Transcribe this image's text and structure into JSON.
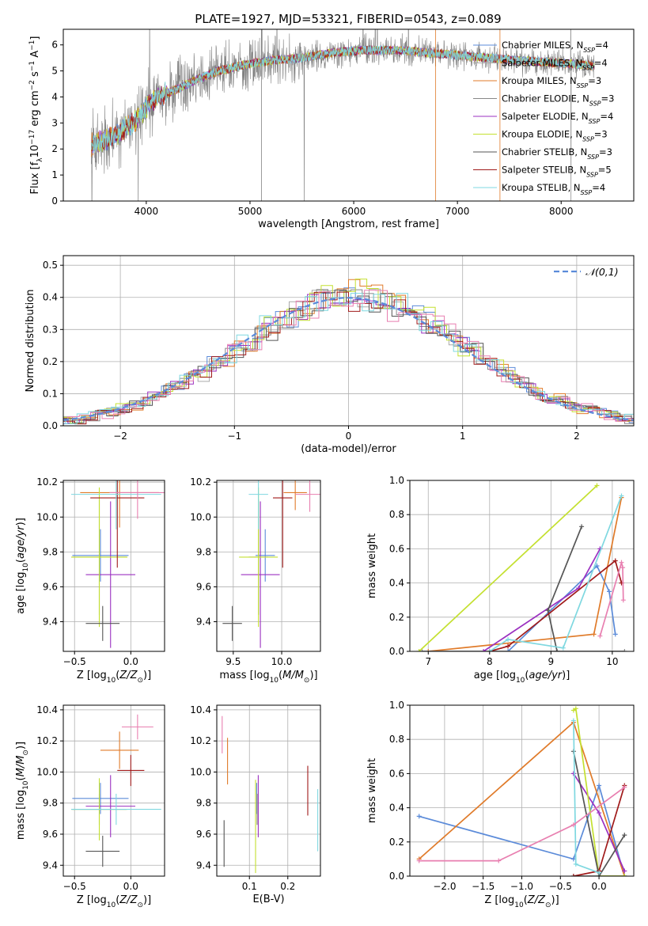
{
  "title": "PLATE=1927, MJD=53321, FIBERID=0543, z=0.089",
  "colors": {
    "Chabrier MILES": "#5b8bd9",
    "Salpeter MILES": "#aaaaaa",
    "Kroupa MILES": "#e07b2a",
    "Chabrier ELODIE": "#888888",
    "Salpeter ELODIE": "#9b30c0",
    "Kroupa ELODIE": "#c4e030",
    "Chabrier STELIB": "#555555",
    "Salpeter STELIB": "#a01a1a",
    "Kroupa STELIB": "#7fd8e0",
    "pink": "#e87fb0",
    "gaussian": "#5b8bd9"
  },
  "chart_data": [
    {
      "id": "spectrum",
      "type": "line",
      "xlabel": "wavelength [Angstrom, rest frame]",
      "ylabel": "Flux [fλ 10^-17 erg cm^-2 s^-1 A^-1]",
      "xlim": [
        3200,
        8700
      ],
      "ylim": [
        0,
        6.6
      ],
      "xticks": [
        4000,
        5000,
        6000,
        7000,
        8000
      ],
      "yticks": [
        0,
        1,
        2,
        3,
        4,
        5,
        6
      ],
      "grid": false,
      "legend": "upper right",
      "legend_entries": [
        {
          "label": "Chabrier MILES, N",
          "sub": "SSP",
          "suffix": "=4"
        },
        {
          "label": "Salpeter MILES, N",
          "sub": "SSP",
          "suffix": "=4"
        },
        {
          "label": "Kroupa MILES, N",
          "sub": "SSP",
          "suffix": "=3"
        },
        {
          "label": "Chabrier ELODIE, N",
          "sub": "SSP",
          "suffix": "=3"
        },
        {
          "label": "Salpeter ELODIE, N",
          "sub": "SSP",
          "suffix": "=4"
        },
        {
          "label": "Kroupa ELODIE, N",
          "sub": "SSP",
          "suffix": "=3"
        },
        {
          "label": "Chabrier STELIB, N",
          "sub": "SSP",
          "suffix": "=3"
        },
        {
          "label": "Salpeter STELIB, N",
          "sub": "SSP",
          "suffix": "=5"
        },
        {
          "label": "Kroupa STELIB, N",
          "sub": "SSP",
          "suffix": "=4"
        }
      ],
      "model_continuum": [
        [
          3500,
          2.2
        ],
        [
          3700,
          2.5
        ],
        [
          3900,
          3.1
        ],
        [
          4000,
          3.6
        ],
        [
          4100,
          4.0
        ],
        [
          4300,
          4.3
        ],
        [
          4500,
          4.7
        ],
        [
          4700,
          5.0
        ],
        [
          4900,
          5.2
        ],
        [
          5200,
          5.4
        ],
        [
          5500,
          5.5
        ],
        [
          5800,
          5.7
        ],
        [
          6100,
          5.8
        ],
        [
          6400,
          5.8
        ],
        [
          6700,
          5.7
        ],
        [
          7000,
          5.6
        ],
        [
          7300,
          5.5
        ],
        [
          7600,
          5.4
        ],
        [
          8000,
          5.3
        ],
        [
          8300,
          5.2
        ]
      ],
      "data_range": [
        3470,
        8320
      ]
    },
    {
      "id": "residuals",
      "type": "histogram",
      "xlabel": "(data-model)/error",
      "ylabel": "Normed distribution",
      "xlim": [
        -2.5,
        2.5
      ],
      "ylim": [
        0,
        0.53
      ],
      "xticks": [
        -2,
        -1,
        0,
        1,
        2
      ],
      "yticks": [
        0.0,
        0.1,
        0.2,
        0.3,
        0.4,
        0.5
      ],
      "grid": true,
      "legend": "upper right",
      "legend_entries": [
        {
          "label": "𝒩(0,1)",
          "style": "dashed"
        }
      ],
      "gaussian": {
        "mu": 0,
        "sigma": 1
      }
    },
    {
      "id": "age_vs_Z",
      "type": "errorbar",
      "xlabel": "Z [log10(Z/Z⊙)]",
      "ylabel": "age  [log10(age/yr)]",
      "xlim": [
        -0.6,
        0.3
      ],
      "ylim": [
        9.23,
        10.21
      ],
      "xticks": [
        -0.5,
        0.0
      ],
      "yticks": [
        9.4,
        9.6,
        9.8,
        10.0,
        10.2
      ],
      "grid": true,
      "points": [
        {
          "c": "Chabrier MILES",
          "x": -0.27,
          "xerr": 0.25,
          "y": 9.78,
          "yerr": 0.15
        },
        {
          "c": "Kroupa MILES",
          "x": -0.1,
          "xerr": 0.35,
          "y": 10.14,
          "yerr": 0.2
        },
        {
          "c": "Chabrier ELODIE",
          "x": -0.28,
          "xerr": 0.24,
          "y": 9.77,
          "yerr": 0.33
        },
        {
          "c": "Salpeter ELODIE",
          "x": -0.18,
          "xerr": 0.22,
          "y": 9.67,
          "yerr": 0.42
        },
        {
          "c": "Kroupa ELODIE",
          "x": -0.28,
          "xerr": 0.25,
          "y": 9.77,
          "yerr": 0.4
        },
        {
          "c": "Chabrier STELIB",
          "x": -0.25,
          "xerr": 0.15,
          "y": 9.39,
          "yerr": 0.1
        },
        {
          "c": "Salpeter STELIB",
          "x": -0.12,
          "xerr": 0.24,
          "y": 10.11,
          "yerr": 0.4
        },
        {
          "c": "Kroupa STELIB",
          "x": -0.13,
          "xerr": 0.4,
          "y": 10.13,
          "yerr": 0.2
        },
        {
          "c": "pink",
          "x": 0.06,
          "xerr": 0.25,
          "y": 10.14,
          "yerr": 0.15
        }
      ]
    },
    {
      "id": "age_vs_mass",
      "type": "errorbar",
      "xlabel": "mass [log10(M/M⊙)]",
      "ylabel": "",
      "xlim": [
        9.33,
        10.4
      ],
      "ylim": [
        9.23,
        10.21
      ],
      "xticks": [
        9.5,
        10.0
      ],
      "yticks": [
        9.4,
        9.6,
        9.8,
        10.0,
        10.2
      ],
      "grid": true,
      "points": [
        {
          "c": "Chabrier MILES",
          "x": 9.83,
          "xerr": 0.1,
          "y": 9.78,
          "yerr": 0.15
        },
        {
          "c": "Kroupa MILES",
          "x": 10.14,
          "xerr": 0.12,
          "y": 10.14,
          "yerr": 0.1
        },
        {
          "c": "Chabrier ELODIE",
          "x": 9.76,
          "xerr": 0.1,
          "y": 9.77,
          "yerr": 0.33
        },
        {
          "c": "Salpeter ELODIE",
          "x": 9.78,
          "xerr": 0.2,
          "y": 9.67,
          "yerr": 0.42
        },
        {
          "c": "Kroupa ELODIE",
          "x": 9.76,
          "xerr": 0.2,
          "y": 9.77,
          "yerr": 0.4
        },
        {
          "c": "Chabrier STELIB",
          "x": 9.49,
          "xerr": 0.1,
          "y": 9.39,
          "yerr": 0.1
        },
        {
          "c": "Salpeter STELIB",
          "x": 10.01,
          "xerr": 0.1,
          "y": 10.11,
          "yerr": 0.4
        },
        {
          "c": "Kroupa STELIB",
          "x": 9.76,
          "xerr": 0.1,
          "y": 10.13,
          "yerr": 0.2
        },
        {
          "c": "pink",
          "x": 10.29,
          "xerr": 0.15,
          "y": 10.13,
          "yerr": 0.1
        }
      ]
    },
    {
      "id": "mw_vs_age",
      "type": "line",
      "xlabel": "age  [log10(age/yr)]",
      "ylabel": "mass weight",
      "xlim": [
        6.7,
        10.35
      ],
      "ylim": [
        0,
        1.0
      ],
      "xticks": [
        7,
        8,
        9,
        10
      ],
      "yticks": [
        0.0,
        0.2,
        0.4,
        0.6,
        0.8,
        1.0
      ],
      "grid": true,
      "series": [
        {
          "c": "Chabrier MILES",
          "x": [
            8.3,
            9.75,
            9.95,
            10.05
          ],
          "y": [
            0.0,
            0.5,
            0.35,
            0.1
          ]
        },
        {
          "c": "Kroupa MILES",
          "x": [
            7.0,
            9.7,
            10.15
          ],
          "y": [
            0.0,
            0.1,
            0.9
          ]
        },
        {
          "c": "Chabrier ELODIE",
          "x": [
            6.9,
            10.2
          ],
          "y": [
            0.0,
            0.0
          ]
        },
        {
          "c": "Salpeter ELODIE",
          "x": [
            7.9,
            9.45,
            9.8
          ],
          "y": [
            0.0,
            0.37,
            0.6
          ]
        },
        {
          "c": "Kroupa ELODIE",
          "x": [
            6.85,
            9.75
          ],
          "y": [
            0.0,
            0.97
          ]
        },
        {
          "c": "Chabrier STELIB",
          "x": [
            9.1,
            8.95,
            9.5
          ],
          "y": [
            0.0,
            0.24,
            0.73
          ]
        },
        {
          "c": "Salpeter STELIB",
          "x": [
            8.0,
            8.3,
            10.05,
            10.15
          ],
          "y": [
            0.0,
            0.03,
            0.53,
            0.4
          ]
        },
        {
          "c": "Kroupa STELIB",
          "x": [
            8.0,
            8.3,
            9.2,
            10.15
          ],
          "y": [
            0.0,
            0.07,
            0.02,
            0.91
          ]
        },
        {
          "c": "pink",
          "x": [
            9.8,
            10.15,
            10.17,
            10.18
          ],
          "y": [
            0.09,
            0.52,
            0.49,
            0.3
          ]
        }
      ]
    },
    {
      "id": "mass_vs_Z",
      "type": "errorbar",
      "xlabel": "Z [log10(Z/Z⊙)]",
      "ylabel": "mass [log10(M/M⊙)]",
      "xlim": [
        -0.6,
        0.3
      ],
      "ylim": [
        9.33,
        10.43
      ],
      "xticks": [
        -0.5,
        0.0
      ],
      "yticks": [
        9.4,
        9.6,
        9.8,
        10.0,
        10.2,
        10.4
      ],
      "grid": true,
      "points": [
        {
          "c": "Chabrier MILES",
          "x": -0.27,
          "xerr": 0.25,
          "y": 9.83,
          "yerr": 0.1
        },
        {
          "c": "Kroupa MILES",
          "x": -0.1,
          "xerr": 0.17,
          "y": 10.14,
          "yerr": 0.12
        },
        {
          "c": "Chabrier ELODIE",
          "x": -0.28,
          "xerr": 0.24,
          "y": 9.76,
          "yerr": 0.1
        },
        {
          "c": "Salpeter ELODIE",
          "x": -0.18,
          "xerr": 0.22,
          "y": 9.78,
          "yerr": 0.2
        },
        {
          "c": "Kroupa ELODIE",
          "x": -0.28,
          "xerr": 0.25,
          "y": 9.76,
          "yerr": 0.2
        },
        {
          "c": "Chabrier STELIB",
          "x": -0.25,
          "xerr": 0.15,
          "y": 9.49,
          "yerr": 0.1
        },
        {
          "c": "Salpeter STELIB",
          "x": 0.0,
          "xerr": 0.12,
          "y": 10.01,
          "yerr": 0.1
        },
        {
          "c": "Kroupa STELIB",
          "x": -0.13,
          "xerr": 0.4,
          "y": 9.76,
          "yerr": 0.1
        },
        {
          "c": "pink",
          "x": 0.06,
          "xerr": 0.14,
          "y": 10.29,
          "yerr": 0.08
        }
      ]
    },
    {
      "id": "mass_vs_ebv",
      "type": "errorbar",
      "xlabel": "E(B-V)",
      "ylabel": "",
      "xlim": [
        0.015,
        0.285
      ],
      "ylim": [
        9.33,
        10.43
      ],
      "xticks": [
        0.1,
        0.2
      ],
      "yticks": [
        9.4,
        9.6,
        9.8,
        10.0,
        10.2,
        10.4
      ],
      "grid": true,
      "points": [
        {
          "c": "Chabrier MILES",
          "x": 0.119,
          "xerr": 0,
          "y": 9.83,
          "yerr": 0.1
        },
        {
          "c": "Kroupa MILES",
          "x": 0.043,
          "xerr": 0,
          "y": 10.07,
          "yerr": 0.15
        },
        {
          "c": "Chabrier ELODIE",
          "x": 0.12,
          "xerr": 0,
          "y": 9.76,
          "yerr": 0.1
        },
        {
          "c": "Salpeter ELODIE",
          "x": 0.123,
          "xerr": 0,
          "y": 9.78,
          "yerr": 0.2
        },
        {
          "c": "Kroupa ELODIE",
          "x": 0.116,
          "xerr": 0,
          "y": 9.65,
          "yerr": 0.3
        },
        {
          "c": "Chabrier STELIB",
          "x": 0.034,
          "xerr": 0,
          "y": 9.54,
          "yerr": 0.15
        },
        {
          "c": "Salpeter STELIB",
          "x": 0.252,
          "xerr": 0,
          "y": 9.88,
          "yerr": 0.16
        },
        {
          "c": "Kroupa STELIB",
          "x": 0.278,
          "xerr": 0,
          "y": 9.69,
          "yerr": 0.2
        },
        {
          "c": "pink",
          "x": 0.029,
          "xerr": 0,
          "y": 10.24,
          "yerr": 0.12
        }
      ]
    },
    {
      "id": "mw_vs_Z",
      "type": "line",
      "xlabel": "Z [log10(Z/Z⊙)]",
      "ylabel": "mass weight",
      "xlim": [
        -2.45,
        0.45
      ],
      "ylim": [
        0,
        1.0
      ],
      "xticks": [
        -2.0,
        -1.5,
        -1.0,
        -0.5,
        0.0
      ],
      "yticks": [
        0.0,
        0.2,
        0.4,
        0.6,
        0.8,
        1.0
      ],
      "grid": true,
      "series": [
        {
          "c": "Chabrier MILES",
          "x": [
            -2.33,
            -0.33,
            0.0,
            0.33
          ],
          "y": [
            0.35,
            0.1,
            0.53,
            0.0
          ]
        },
        {
          "c": "Kroupa MILES",
          "x": [
            -2.33,
            -0.33,
            0.33
          ],
          "y": [
            0.1,
            0.9,
            0.0
          ]
        },
        {
          "c": "Chabrier ELODIE",
          "x": [
            -0.33,
            0.33
          ],
          "y": [
            0.0,
            0.0
          ]
        },
        {
          "c": "Salpeter ELODIE",
          "x": [
            -0.33,
            0.0,
            0.33
          ],
          "y": [
            0.6,
            0.37,
            0.03
          ]
        },
        {
          "c": "Kroupa ELODIE",
          "x": [
            -0.33,
            -0.3,
            0.0,
            0.33
          ],
          "y": [
            0.97,
            0.98,
            0.0,
            0.0
          ]
        },
        {
          "c": "Chabrier STELIB",
          "x": [
            -0.33,
            0.0,
            0.33
          ],
          "y": [
            0.73,
            0.0,
            0.24
          ]
        },
        {
          "c": "Salpeter STELIB",
          "x": [
            -0.33,
            0.0,
            0.33
          ],
          "y": [
            0.0,
            0.03,
            0.53
          ]
        },
        {
          "c": "Kroupa STELIB",
          "x": [
            -0.33,
            -0.3,
            0.0
          ],
          "y": [
            0.91,
            0.07,
            0.02
          ]
        },
        {
          "c": "pink",
          "x": [
            -2.33,
            -1.3,
            -0.33,
            0.33
          ],
          "y": [
            0.09,
            0.09,
            0.3,
            0.52
          ]
        }
      ]
    }
  ]
}
